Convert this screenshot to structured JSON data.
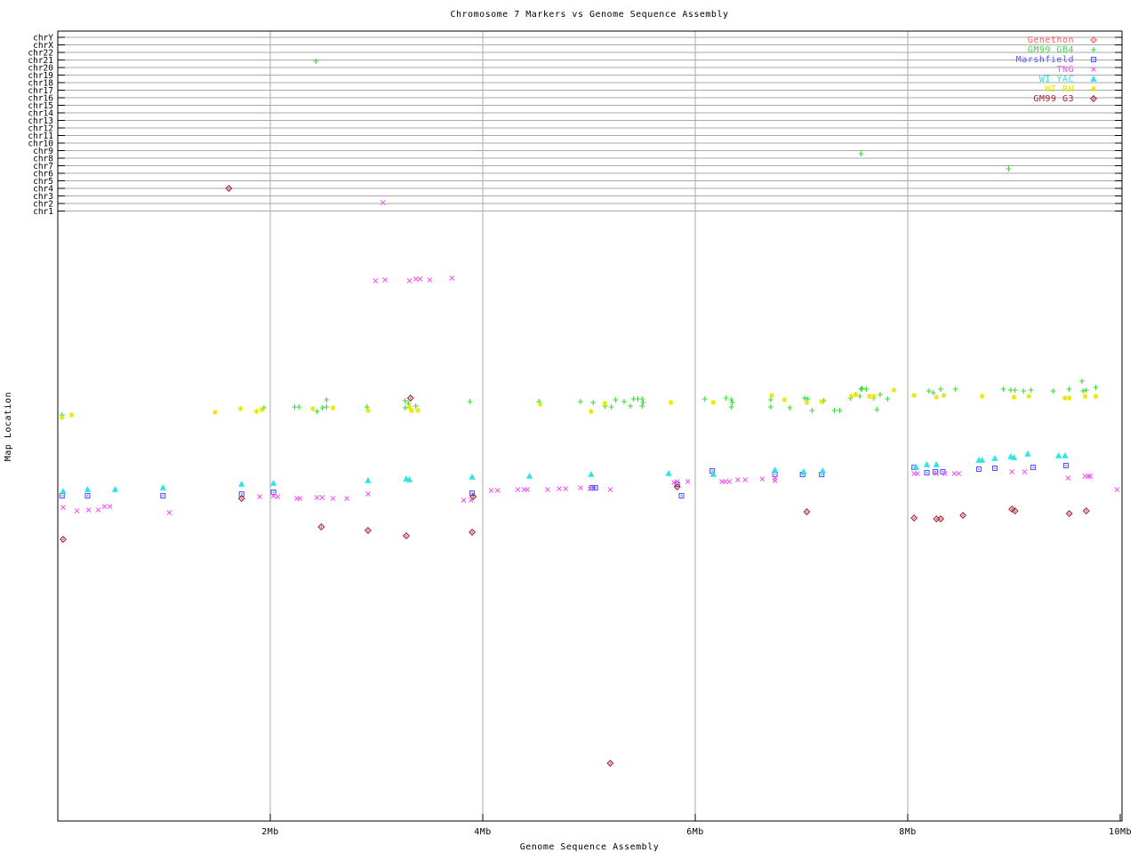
{
  "title": "Chromosome 7 Markers vs Genome Sequence Assembly",
  "x_axis": {
    "label": "Genome Sequence Assembly",
    "ticks": [
      {
        "label": "2Mb",
        "mb": 2
      },
      {
        "label": "4Mb",
        "mb": 4
      },
      {
        "label": "6Mb",
        "mb": 6
      },
      {
        "label": "8Mb",
        "mb": 8
      },
      {
        "label": "10Mb",
        "mb": 10
      }
    ],
    "range_mb": [
      0,
      10
    ]
  },
  "y_axis": {
    "label": "Map Location",
    "chromosome_ticks": [
      "chrY",
      "chrX",
      "chr22",
      "chr21",
      "chr20",
      "chr19",
      "chr18",
      "chr17",
      "chr16",
      "chr15",
      "chr14",
      "chr13",
      "chr12",
      "chr11",
      "chr10",
      "chr9",
      "chr8",
      "chr7",
      "chr6",
      "chr5",
      "chr4",
      "chr3",
      "chr2",
      "chr1"
    ]
  },
  "legend": [
    {
      "label": "Genethon",
      "color": "#ff5f5f",
      "marker": "diamond"
    },
    {
      "label": "GM99 GB4",
      "color": "#3fd83f",
      "marker": "plus"
    },
    {
      "label": "Marshfield",
      "color": "#5555ff",
      "marker": "square"
    },
    {
      "label": "TNG",
      "color": "#f556f5",
      "marker": "cross"
    },
    {
      "label": "WI YAC",
      "color": "#2ee4e4",
      "marker": "triangle"
    },
    {
      "label": "WI RH",
      "color": "#e6e600",
      "marker": "asterisk"
    },
    {
      "label": "GM99 G3",
      "color": "#a82332",
      "marker": "diamond"
    }
  ],
  "chart_data": {
    "type": "scatter",
    "title": "Chromosome 7 Markers vs Genome Sequence Assembly",
    "xlabel": "Genome Sequence Assembly",
    "ylabel": "Map Location",
    "xlim_mb": [
      0,
      10
    ],
    "grid": "on",
    "legend_position": "top-right",
    "x_units": "Mb on genome sequence assembly",
    "y_units": "map-location axis is unlabeled; y values below are vertical plot positions in px (top of plot=35, bottom=924); chromosome gridlines run y=42 (chrY) to y=237.5 (chr1) step 8.5",
    "series": [
      {
        "name": "Genethon",
        "color": "#ff5f5f",
        "marker": "diamond",
        "points": []
      },
      {
        "name": "GM99 GB4",
        "color": "#3fd83f",
        "marker": "plus",
        "points": [
          [
            2.43,
            69
          ],
          [
            7.56,
            173
          ],
          [
            8.95,
            190
          ],
          [
            0.04,
            467
          ],
          [
            1.94,
            459
          ],
          [
            2.23,
            458
          ],
          [
            2.27,
            458
          ],
          [
            2.44,
            463
          ],
          [
            2.49,
            459
          ],
          [
            2.53,
            450
          ],
          [
            2.53,
            458
          ],
          [
            2.91,
            458
          ],
          [
            3.27,
            451
          ],
          [
            3.3,
            454
          ],
          [
            3.27,
            459
          ],
          [
            3.37,
            457
          ],
          [
            3.88,
            452
          ],
          [
            4.53,
            452
          ],
          [
            4.92,
            452
          ],
          [
            5.04,
            453
          ],
          [
            5.15,
            457
          ],
          [
            5.21,
            458
          ],
          [
            5.25,
            450
          ],
          [
            5.33,
            452
          ],
          [
            5.39,
            457
          ],
          [
            5.42,
            449
          ],
          [
            5.46,
            449
          ],
          [
            5.5,
            449
          ],
          [
            5.51,
            453
          ],
          [
            5.5,
            457
          ],
          [
            6.09,
            449
          ],
          [
            6.29,
            448
          ],
          [
            6.34,
            450
          ],
          [
            6.35,
            453
          ],
          [
            6.34,
            458
          ],
          [
            6.71,
            450
          ],
          [
            6.71,
            458
          ],
          [
            6.89,
            459
          ],
          [
            7.03,
            448
          ],
          [
            7.06,
            449
          ],
          [
            7.1,
            462
          ],
          [
            7.21,
            451
          ],
          [
            7.31,
            462
          ],
          [
            7.36,
            462
          ],
          [
            7.46,
            448
          ],
          [
            7.55,
            446
          ],
          [
            7.56,
            438
          ],
          [
            7.57,
            437
          ],
          [
            7.61,
            438
          ],
          [
            7.68,
            448
          ],
          [
            7.74,
            444
          ],
          [
            7.81,
            449
          ],
          [
            7.71,
            461
          ],
          [
            8.2,
            440
          ],
          [
            8.24,
            442
          ],
          [
            8.31,
            438
          ],
          [
            8.45,
            438
          ],
          [
            8.9,
            438
          ],
          [
            8.97,
            439
          ],
          [
            9.01,
            439
          ],
          [
            9.09,
            440
          ],
          [
            9.16,
            439
          ],
          [
            9.37,
            440
          ],
          [
            9.52,
            438
          ],
          [
            9.64,
            429
          ],
          [
            9.65,
            440
          ],
          [
            9.68,
            439
          ],
          [
            9.77,
            436
          ]
        ]
      },
      {
        "name": "Marshfield",
        "color": "#5555ff",
        "marker": "square",
        "points": [
          [
            0.04,
            558
          ],
          [
            0.28,
            558
          ],
          [
            0.99,
            558
          ],
          [
            1.73,
            556
          ],
          [
            2.03,
            554
          ],
          [
            3.9,
            555
          ],
          [
            5.03,
            549
          ],
          [
            5.06,
            549
          ],
          [
            5.83,
            545
          ],
          [
            5.87,
            558
          ],
          [
            6.16,
            530
          ],
          [
            6.75,
            534
          ],
          [
            7.01,
            534
          ],
          [
            7.19,
            534
          ],
          [
            8.06,
            526
          ],
          [
            8.18,
            532
          ],
          [
            8.26,
            531
          ],
          [
            8.33,
            531
          ],
          [
            8.67,
            528
          ],
          [
            8.82,
            527
          ],
          [
            9.18,
            526
          ],
          [
            9.49,
            524
          ]
        ]
      },
      {
        "name": "TNG",
        "color": "#f556f5",
        "marker": "cross",
        "points": [
          [
            3.06,
            228
          ],
          [
            2.99,
            316
          ],
          [
            3.08,
            315
          ],
          [
            3.31,
            316
          ],
          [
            3.37,
            314
          ],
          [
            3.41,
            314
          ],
          [
            3.5,
            315
          ],
          [
            3.71,
            313
          ],
          [
            0.05,
            571
          ],
          [
            0.18,
            575
          ],
          [
            0.29,
            574
          ],
          [
            0.38,
            574
          ],
          [
            0.44,
            570
          ],
          [
            0.49,
            570
          ],
          [
            1.05,
            577
          ],
          [
            1.9,
            559
          ],
          [
            2.03,
            558
          ],
          [
            2.07,
            559
          ],
          [
            2.25,
            561
          ],
          [
            2.28,
            561
          ],
          [
            2.44,
            560
          ],
          [
            2.49,
            560
          ],
          [
            2.59,
            561
          ],
          [
            2.72,
            561
          ],
          [
            2.92,
            556
          ],
          [
            3.82,
            563
          ],
          [
            3.89,
            563
          ],
          [
            4.08,
            552
          ],
          [
            4.14,
            552
          ],
          [
            4.33,
            551
          ],
          [
            4.39,
            551
          ],
          [
            4.42,
            551
          ],
          [
            4.61,
            551
          ],
          [
            4.72,
            550
          ],
          [
            4.78,
            550
          ],
          [
            4.92,
            549
          ],
          [
            5.01,
            550
          ],
          [
            5.2,
            551
          ],
          [
            5.8,
            543
          ],
          [
            5.83,
            542
          ],
          [
            5.93,
            542
          ],
          [
            6.25,
            542
          ],
          [
            6.28,
            542
          ],
          [
            6.32,
            542
          ],
          [
            6.4,
            540
          ],
          [
            6.47,
            540
          ],
          [
            6.63,
            539
          ],
          [
            6.75,
            538
          ],
          [
            6.75,
            541
          ],
          [
            8.06,
            533
          ],
          [
            8.09,
            533
          ],
          [
            8.27,
            533
          ],
          [
            8.35,
            533
          ],
          [
            8.44,
            533
          ],
          [
            8.48,
            533
          ],
          [
            8.98,
            531
          ],
          [
            9.1,
            531
          ],
          [
            9.51,
            538
          ],
          [
            9.67,
            536
          ],
          [
            9.7,
            536
          ],
          [
            9.72,
            536
          ],
          [
            9.97,
            551
          ]
        ]
      },
      {
        "name": "WI YAC",
        "color": "#2ee4e4",
        "marker": "triangle",
        "points": [
          [
            0.05,
            553
          ],
          [
            0.28,
            551
          ],
          [
            0.54,
            551
          ],
          [
            0.99,
            549
          ],
          [
            1.73,
            545
          ],
          [
            2.03,
            544
          ],
          [
            2.92,
            541
          ],
          [
            3.28,
            539
          ],
          [
            3.31,
            540
          ],
          [
            3.9,
            537
          ],
          [
            4.44,
            536
          ],
          [
            5.02,
            534
          ],
          [
            5.75,
            533
          ],
          [
            6.17,
            534
          ],
          [
            6.75,
            529
          ],
          [
            7.02,
            531
          ],
          [
            7.2,
            530
          ],
          [
            8.08,
            526
          ],
          [
            8.18,
            523
          ],
          [
            8.27,
            523
          ],
          [
            8.67,
            518
          ],
          [
            8.7,
            518
          ],
          [
            8.82,
            516
          ],
          [
            8.97,
            514
          ],
          [
            9.0,
            515
          ],
          [
            9.13,
            511
          ],
          [
            9.42,
            513
          ],
          [
            9.48,
            513
          ]
        ]
      },
      {
        "name": "WI RH",
        "color": "#e6e600",
        "marker": "asterisk",
        "points": [
          [
            0.04,
            470
          ],
          [
            0.13,
            467
          ],
          [
            1.48,
            464
          ],
          [
            1.72,
            460
          ],
          [
            1.87,
            463
          ],
          [
            1.92,
            461
          ],
          [
            2.4,
            460
          ],
          [
            2.59,
            459
          ],
          [
            2.92,
            462
          ],
          [
            3.31,
            458
          ],
          [
            3.33,
            462
          ],
          [
            3.39,
            462
          ],
          [
            4.54,
            455
          ],
          [
            5.02,
            463
          ],
          [
            5.15,
            454
          ],
          [
            5.77,
            453
          ],
          [
            6.17,
            453
          ],
          [
            6.72,
            445
          ],
          [
            6.84,
            450
          ],
          [
            7.05,
            453
          ],
          [
            7.19,
            452
          ],
          [
            7.47,
            446
          ],
          [
            7.51,
            444
          ],
          [
            7.64,
            446
          ],
          [
            7.68,
            446
          ],
          [
            7.87,
            439
          ],
          [
            8.06,
            445
          ],
          [
            8.27,
            447
          ],
          [
            8.34,
            445
          ],
          [
            8.7,
            446
          ],
          [
            9.0,
            447
          ],
          [
            9.14,
            446
          ],
          [
            9.48,
            448
          ],
          [
            9.52,
            448
          ],
          [
            9.67,
            446
          ],
          [
            9.77,
            446
          ]
        ]
      },
      {
        "name": "GM99 G3",
        "color": "#a82332",
        "marker": "diamond",
        "points": [
          [
            1.61,
            212
          ],
          [
            0.05,
            607
          ],
          [
            1.73,
            561
          ],
          [
            2.48,
            593
          ],
          [
            2.92,
            597
          ],
          [
            3.28,
            603
          ],
          [
            3.32,
            448
          ],
          [
            3.9,
            599
          ],
          [
            3.91,
            559
          ],
          [
            5.2,
            859
          ],
          [
            5.83,
            548
          ],
          [
            7.05,
            576
          ],
          [
            8.06,
            583
          ],
          [
            8.27,
            584
          ],
          [
            8.31,
            584
          ],
          [
            8.52,
            580
          ],
          [
            8.98,
            573
          ],
          [
            9.01,
            575
          ],
          [
            9.52,
            578
          ],
          [
            9.68,
            575
          ]
        ]
      }
    ]
  },
  "colors": {
    "grid": "#a8a8a8",
    "axis": "#000000",
    "background": "#ffffff"
  }
}
